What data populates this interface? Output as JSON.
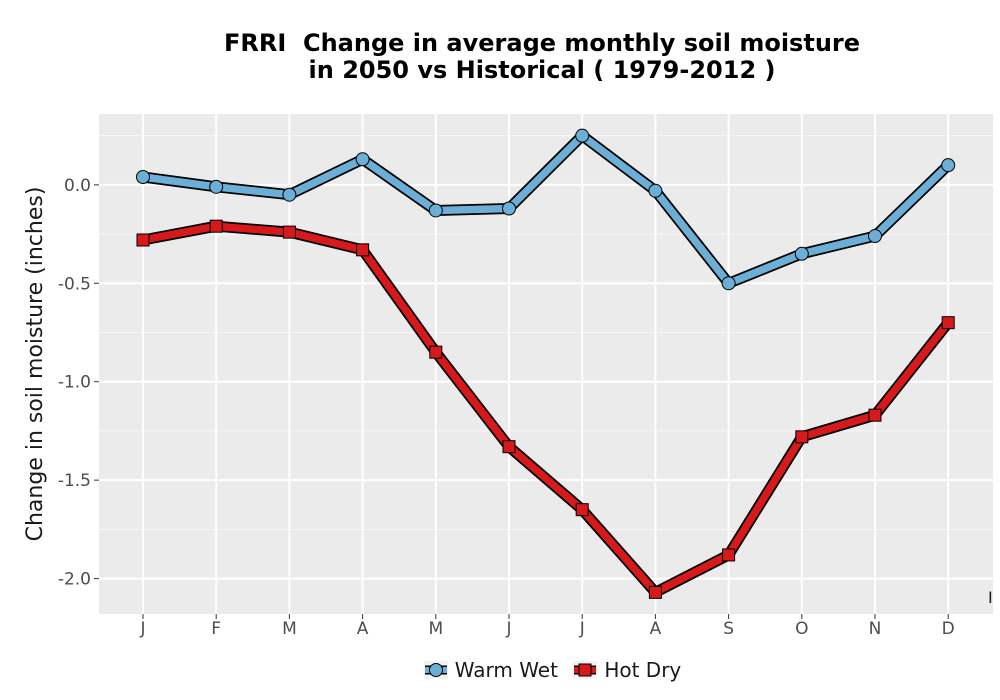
{
  "chart_data": {
    "type": "line",
    "title_lines": [
      "FRRI  Change in average monthly soil moisture",
      "in 2050 vs Historical ( 1979-2012 )"
    ],
    "xlabel": "",
    "ylabel": "Change in soil moisture (inches)",
    "categories": [
      "J",
      "F",
      "M",
      "A",
      "M",
      "J",
      "J",
      "A",
      "S",
      "O",
      "N",
      "D"
    ],
    "ylim": [
      -2.18,
      0.36
    ],
    "yticks": [
      0.0,
      -0.5,
      -1.0,
      -1.5,
      -2.0
    ],
    "ytick_labels": [
      "0.0",
      "-0.5",
      "-1.0",
      "-1.5",
      "-2.0"
    ],
    "grid": true,
    "legend_position": "bottom",
    "corner_mark": "I",
    "series": [
      {
        "name": "Warm Wet",
        "marker": "circle",
        "color": "#6baed6",
        "values": [
          0.04,
          -0.01,
          -0.05,
          0.13,
          -0.13,
          -0.12,
          0.25,
          -0.03,
          -0.5,
          -0.35,
          -0.26,
          0.1
        ]
      },
      {
        "name": "Hot Dry",
        "marker": "square",
        "color": "#d7191c",
        "values": [
          -0.28,
          -0.21,
          -0.24,
          -0.33,
          -0.85,
          -1.33,
          -1.65,
          -2.07,
          -1.88,
          -1.28,
          -1.17,
          -0.7
        ]
      }
    ]
  }
}
